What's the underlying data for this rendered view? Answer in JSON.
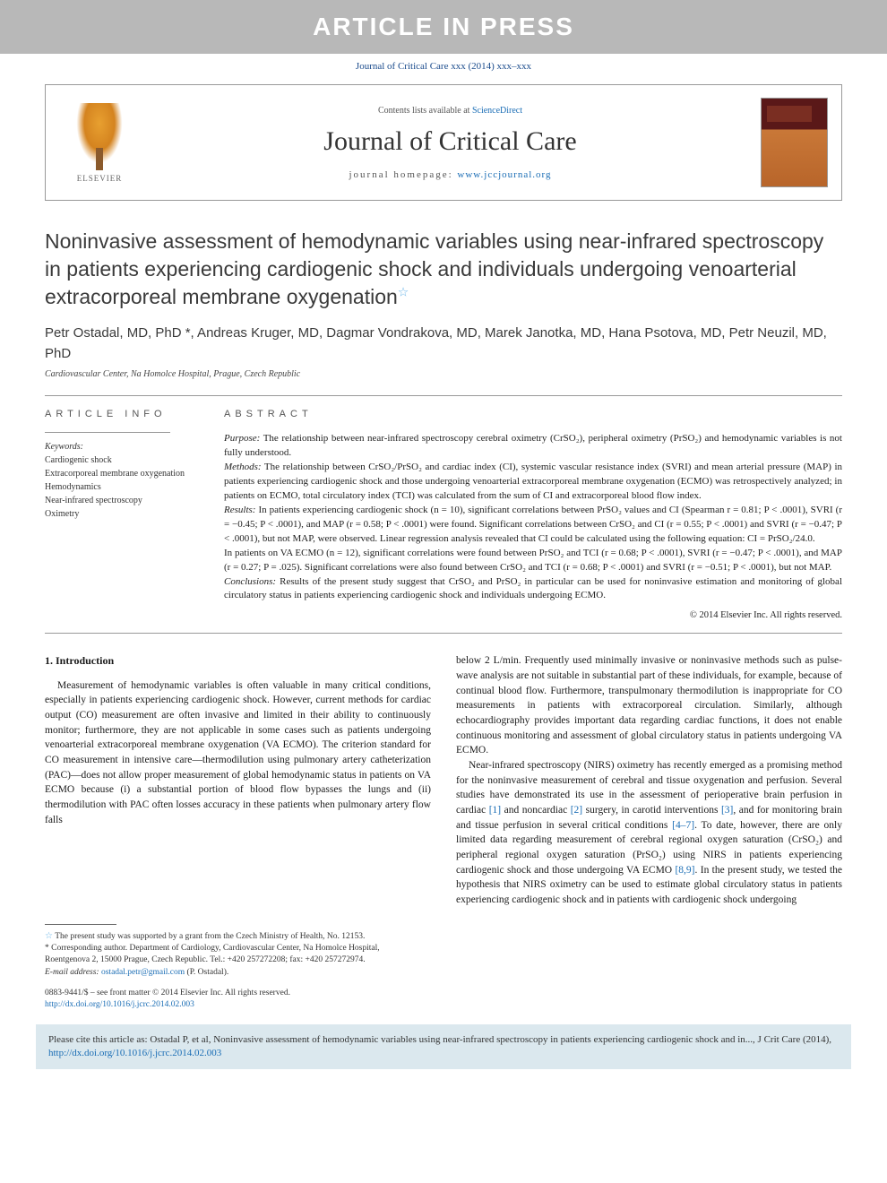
{
  "banner": {
    "text": "ARTICLE IN PRESS"
  },
  "journal_ref": "Journal of Critical Care xxx (2014) xxx–xxx",
  "header": {
    "contents_prefix": "Contents lists available at ",
    "contents_link": "ScienceDirect",
    "journal_name": "Journal of Critical Care",
    "homepage_prefix": "journal homepage: ",
    "homepage_link": "www.jccjournal.org",
    "elsevier_label": "ELSEVIER"
  },
  "title": "Noninvasive assessment of hemodynamic variables using near-infrared spectroscopy in patients experiencing cardiogenic shock and individuals undergoing venoarterial extracorporeal membrane oxygenation",
  "star_glyph": "☆",
  "authors": "Petr Ostadal, MD, PhD *, Andreas Kruger, MD, Dagmar Vondrakova, MD, Marek Janotka, MD, Hana Psotova, MD, Petr Neuzil, MD, PhD",
  "affiliation": "Cardiovascular Center, Na Homolce Hospital, Prague, Czech Republic",
  "info": {
    "heading": "ARTICLE INFO",
    "keywords_label": "Keywords:",
    "keywords": [
      "Cardiogenic shock",
      "Extracorporeal membrane oxygenation",
      "Hemodynamics",
      "Near-infrared spectroscopy",
      "Oximetry"
    ]
  },
  "abstract": {
    "heading": "ABSTRACT",
    "purpose_label": "Purpose:",
    "purpose": "The relationship between near-infrared spectroscopy cerebral oximetry (CrSO₂), peripheral oximetry (PrSO₂) and hemodynamic variables is not fully understood.",
    "methods_label": "Methods:",
    "methods": "The relationship between CrSO₂/PrSO₂ and cardiac index (CI), systemic vascular resistance index (SVRI) and mean arterial pressure (MAP) in patients experiencing cardiogenic shock and those undergoing venoarterial extracorporeal membrane oxygenation (ECMO) was retrospectively analyzed; in patients on ECMO, total circulatory index (TCI) was calculated from the sum of CI and extracorporeal blood flow index.",
    "results_label": "Results:",
    "results1": "In patients experiencing cardiogenic shock (n = 10), significant correlations between PrSO₂ values and CI (Spearman r = 0.81; P < .0001), SVRI (r = −0.45; P < .0001), and MAP (r = 0.58; P < .0001) were found. Significant correlations between CrSO₂ and CI (r = 0.55; P < .0001) and SVRI (r = −0.47; P < .0001), but not MAP, were observed. Linear regression analysis revealed that CI could be calculated using the following equation: CI = PrSO₂/24.0.",
    "results2": "In patients on VA ECMO (n = 12), significant correlations were found between PrSO₂ and TCI (r = 0.68; P < .0001), SVRI (r = −0.47; P < .0001), and MAP (r = 0.27; P = .025). Significant correlations were also found between CrSO₂ and TCI (r = 0.68; P < .0001) and SVRI (r = −0.51; P < .0001), but not MAP.",
    "conclusions_label": "Conclusions:",
    "conclusions": "Results of the present study suggest that CrSO₂ and PrSO₂ in particular can be used for noninvasive estimation and monitoring of global circulatory status in patients experiencing cardiogenic shock and individuals undergoing ECMO.",
    "copyright": "© 2014 Elsevier Inc. All rights reserved."
  },
  "body": {
    "section1_heading": "1. Introduction",
    "col1_p1": "Measurement of hemodynamic variables is often valuable in many critical conditions, especially in patients experiencing cardiogenic shock. However, current methods for cardiac output (CO) measurement are often invasive and limited in their ability to continuously monitor; furthermore, they are not applicable in some cases such as patients undergoing venoarterial extracorporeal membrane oxygenation (VA ECMO). The criterion standard for CO measurement in intensive care—thermodilution using pulmonary artery catheterization (PAC)—does not allow proper measurement of global hemodynamic status in patients on VA ECMO because (i) a substantial portion of blood flow bypasses the lungs and (ii) thermodilution with PAC often losses accuracy in these patients when pulmonary artery flow falls",
    "col2_p1": "below 2 L/min. Frequently used minimally invasive or noninvasive methods such as pulse-wave analysis are not suitable in substantial part of these individuals, for example, because of continual blood flow. Furthermore, transpulmonary thermodilution is inappropriate for CO measurements in patients with extracorporeal circulation. Similarly, although echocardiography provides important data regarding cardiac functions, it does not enable continuous monitoring and assessment of global circulatory status in patients undergoing VA ECMO.",
    "col2_p2a": "Near-infrared spectroscopy (NIRS) oximetry has recently emerged as a promising method for the noninvasive measurement of cerebral and tissue oxygenation and perfusion. Several studies have demonstrated its use in the assessment of perioperative brain perfusion in cardiac ",
    "ref1": "[1]",
    "col2_p2b": " and noncardiac ",
    "ref2": "[2]",
    "col2_p2c": " surgery, in carotid interventions ",
    "ref3": "[3]",
    "col2_p2d": ", and for monitoring brain and tissue perfusion in several critical conditions ",
    "ref47": "[4–7]",
    "col2_p2e": ". To date, however, there are only limited data regarding measurement of cerebral regional oxygen saturation (CrSO₂) and peripheral regional oxygen saturation (PrSO₂) using NIRS in patients experiencing cardiogenic shock and those undergoing VA ECMO ",
    "ref89": "[8,9]",
    "col2_p2f": ". In the present study, we tested the hypothesis that NIRS oximetry can be used to estimate global circulatory status in patients experiencing cardiogenic shock and in patients with cardiogenic shock undergoing"
  },
  "footnotes": {
    "fn1_mark": "☆",
    "fn1": "The present study was supported by a grant from the Czech Ministry of Health, No. 12153.",
    "fn2_mark": "*",
    "fn2": "Corresponding author. Department of Cardiology, Cardiovascular Center, Na Homolce Hospital, Roentgenova 2, 15000 Prague, Czech Republic. Tel.: +420 257272208; fax: +420 257272974.",
    "email_label": "E-mail address: ",
    "email": "ostadal.petr@gmail.com",
    "email_suffix": " (P. Ostadal)."
  },
  "footer": {
    "issn": "0883-9441/$ – see front matter © 2014 Elsevier Inc. All rights reserved.",
    "doi": "http://dx.doi.org/10.1016/j.jcrc.2014.02.003"
  },
  "citebox": {
    "text_a": "Please cite this article as: Ostadal P, et al, Noninvasive assessment of hemodynamic variables using near-infrared spectroscopy in patients experiencing cardiogenic shock and in..., J Crit Care (2014), ",
    "doi": "http://dx.doi.org/10.1016/j.jcrc.2014.02.003"
  },
  "colors": {
    "banner_bg": "#b8b8b8",
    "link": "#1a6db5",
    "citebox_bg": "#dbe8ee"
  }
}
